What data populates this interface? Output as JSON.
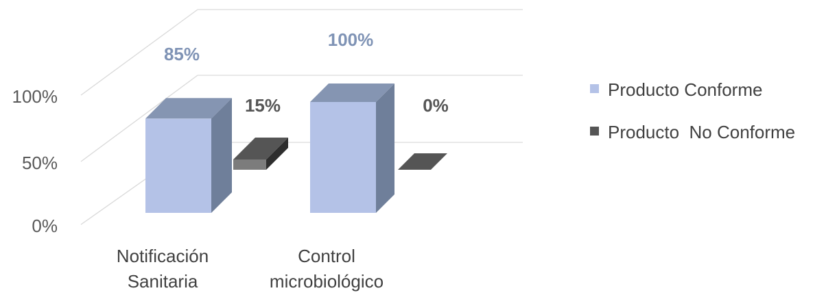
{
  "chart_data": {
    "type": "bar",
    "three_d": true,
    "categories": [
      "Notificación Sanitaria",
      "Control microbiológico"
    ],
    "category_lines": [
      [
        "Notificación",
        "Sanitaria"
      ],
      [
        "Control",
        "microbiológico"
      ]
    ],
    "series": [
      {
        "name": "Producto Conforme",
        "values": [
          85,
          100
        ],
        "labels": [
          "85%",
          "100%"
        ],
        "color": "#b4c2e7",
        "side_color": "#6f7f9a",
        "top_color": "#8595b2",
        "label_color": "#7f93b5"
      },
      {
        "name": "Producto  No Conforme",
        "values": [
          15,
          0
        ],
        "labels": [
          "15%",
          "0%"
        ],
        "color": "#7c7c7c",
        "side_color": "#2e2e2e",
        "top_color": "#555555",
        "label_color": "#555555"
      }
    ],
    "y_ticks": [
      "0%",
      "50%",
      "100%"
    ],
    "ylim": [
      0,
      100
    ],
    "grid": true,
    "legend_position": "right",
    "title": "",
    "xlabel": "",
    "ylabel": ""
  }
}
